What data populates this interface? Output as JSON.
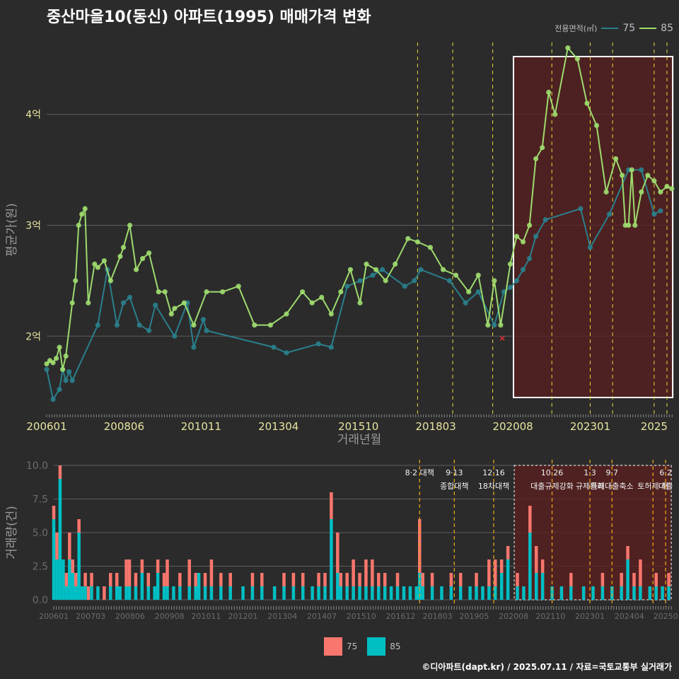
{
  "title": "중산마을10(동신) 아파트(1995) 매매가격 변화",
  "footer": "©디아파트(dapt.kr) / 2025.07.11 / 자료=국토교통부 실거래가",
  "legend_top": {
    "title": "전용면적(㎡)",
    "items": [
      "75",
      "85"
    ]
  },
  "legend_bottom": {
    "items": [
      "75",
      "85"
    ]
  },
  "colors": {
    "a75_line": "#2a7f8c",
    "a85_line": "#9edb6e",
    "bar75": "#f8766d",
    "bar85": "#00bfc4",
    "policy": "#e6d93a",
    "highlight": "#5a1f1f"
  },
  "chart_data": [
    {
      "type": "line",
      "title": "중산마을10(동신) 아파트(1995) 매매가격 변화",
      "xlabel": "거래년월",
      "ylabel": "평균가(원)",
      "x_range": [
        2006.0,
        2025.6
      ],
      "ylim": [
        1.3,
        4.7
      ],
      "y_ticks": [
        {
          "v": 2,
          "label": "2억"
        },
        {
          "v": 3,
          "label": "3억"
        },
        {
          "v": 4,
          "label": "4억"
        }
      ],
      "x_ticks": [
        {
          "v": 2006.0,
          "label": "200601"
        },
        {
          "v": 2008.42,
          "label": "200806"
        },
        {
          "v": 2010.83,
          "label": "201011"
        },
        {
          "v": 2013.25,
          "label": "201304"
        },
        {
          "v": 2015.75,
          "label": "201510"
        },
        {
          "v": 2018.17,
          "label": "201803"
        },
        {
          "v": 2020.58,
          "label": "202008"
        },
        {
          "v": 2023.0,
          "label": "202301"
        },
        {
          "v": 2025.0,
          "label": "2025"
        }
      ],
      "policy_lines": [
        2017.6,
        2018.7,
        2019.95,
        2021.8,
        2023.0,
        2023.7,
        2025.0,
        2025.4
      ],
      "highlight_range": [
        2020.6,
        2025.58
      ],
      "marker_x": {
        "x": 2020.25,
        "y": 1.98
      },
      "series": [
        {
          "name": "75",
          "x": [
            2006.0,
            2006.2,
            2006.4,
            2006.5,
            2006.6,
            2006.7,
            2006.8,
            2007.6,
            2007.9,
            2008.2,
            2008.4,
            2008.6,
            2008.9,
            2009.2,
            2009.4,
            2010.0,
            2010.4,
            2010.6,
            2010.9,
            2011.0,
            2013.1,
            2013.5,
            2014.5,
            2014.9,
            2015.4,
            2015.8,
            2016.2,
            2016.5,
            2017.2,
            2017.5,
            2017.7,
            2018.6,
            2019.1,
            2019.5,
            2020.0,
            2020.3,
            2020.5,
            2020.7,
            2020.9,
            2021.1,
            2021.3,
            2021.6,
            2022.7,
            2023.0,
            2023.6,
            2024.2,
            2024.6,
            2025.0,
            2025.2
          ],
          "y": [
            1.7,
            1.43,
            1.52,
            1.7,
            1.6,
            1.68,
            1.6,
            2.1,
            2.6,
            2.1,
            2.3,
            2.35,
            2.1,
            2.05,
            2.28,
            2.0,
            2.3,
            1.9,
            2.15,
            2.05,
            1.9,
            1.85,
            1.93,
            1.9,
            2.45,
            2.5,
            2.55,
            2.6,
            2.45,
            2.5,
            2.6,
            2.5,
            2.3,
            2.4,
            2.1,
            2.4,
            2.44,
            2.5,
            2.6,
            2.7,
            2.9,
            3.05,
            3.15,
            2.8,
            3.1,
            3.5,
            3.5,
            3.1,
            3.13
          ]
        },
        {
          "name": "85",
          "x": [
            2006.0,
            2006.1,
            2006.2,
            2006.3,
            2006.4,
            2006.5,
            2006.6,
            2006.8,
            2006.9,
            2007.0,
            2007.1,
            2007.2,
            2007.3,
            2007.5,
            2007.6,
            2007.8,
            2008.0,
            2008.3,
            2008.4,
            2008.6,
            2008.8,
            2009.0,
            2009.2,
            2009.5,
            2009.7,
            2009.9,
            2010.0,
            2010.3,
            2010.6,
            2011.0,
            2011.5,
            2012.0,
            2012.5,
            2013.0,
            2013.5,
            2014.0,
            2014.3,
            2014.6,
            2014.9,
            2015.2,
            2015.5,
            2015.8,
            2016.0,
            2016.3,
            2016.6,
            2016.9,
            2017.3,
            2017.6,
            2018.0,
            2018.4,
            2018.8,
            2019.2,
            2019.5,
            2019.8,
            2020.0,
            2020.2,
            2020.5,
            2020.7,
            2020.9,
            2021.1,
            2021.3,
            2021.5,
            2021.7,
            2021.9,
            2022.3,
            2022.6,
            2022.9,
            2023.2,
            2023.5,
            2023.8,
            2024.0,
            2024.1,
            2024.2,
            2024.3,
            2024.4,
            2024.6,
            2024.8,
            2025.0,
            2025.2,
            2025.4,
            2025.55
          ],
          "y": [
            1.75,
            1.78,
            1.76,
            1.8,
            1.9,
            1.7,
            1.82,
            2.3,
            2.5,
            3.0,
            3.1,
            3.15,
            2.3,
            2.65,
            2.62,
            2.68,
            2.5,
            2.72,
            2.8,
            3.0,
            2.6,
            2.7,
            2.75,
            2.4,
            2.4,
            2.2,
            2.25,
            2.3,
            2.1,
            2.4,
            2.4,
            2.45,
            2.1,
            2.1,
            2.2,
            2.4,
            2.3,
            2.35,
            2.2,
            2.4,
            2.6,
            2.3,
            2.65,
            2.6,
            2.5,
            2.65,
            2.88,
            2.85,
            2.8,
            2.6,
            2.55,
            2.4,
            2.55,
            2.1,
            2.5,
            2.1,
            2.65,
            2.9,
            2.85,
            3.0,
            3.6,
            3.7,
            4.2,
            4.0,
            4.6,
            4.5,
            4.1,
            3.9,
            3.3,
            3.6,
            3.45,
            3.0,
            3.0,
            3.5,
            3.0,
            3.3,
            3.45,
            3.4,
            3.3,
            3.35,
            3.33
          ]
        }
      ]
    },
    {
      "type": "bar",
      "title": "",
      "xlabel": "",
      "ylabel": "거래량(건)",
      "x_range": [
        2006.0,
        2025.6
      ],
      "ylim": [
        0,
        10
      ],
      "y_ticks": [
        {
          "v": 0,
          "label": "0.0"
        },
        {
          "v": 2.5,
          "label": "2.5"
        },
        {
          "v": 5,
          "label": "5.0"
        },
        {
          "v": 7.5,
          "label": "7.5"
        },
        {
          "v": 10,
          "label": "10.0"
        }
      ],
      "x_ticks": [
        {
          "v": 2006.0,
          "label": "200601"
        },
        {
          "v": 2007.17,
          "label": "200703"
        },
        {
          "v": 2008.42,
          "label": "200806"
        },
        {
          "v": 2009.67,
          "label": "200908"
        },
        {
          "v": 2010.83,
          "label": "201011"
        },
        {
          "v": 2012.0,
          "label": "201201"
        },
        {
          "v": 2013.25,
          "label": "201304"
        },
        {
          "v": 2014.5,
          "label": "201407"
        },
        {
          "v": 2015.75,
          "label": "201510"
        },
        {
          "v": 2017.0,
          "label": "201612"
        },
        {
          "v": 2018.17,
          "label": "201803"
        },
        {
          "v": 2019.33,
          "label": "201905"
        },
        {
          "v": 2020.58,
          "label": "202008"
        },
        {
          "v": 2021.75,
          "label": "202110"
        },
        {
          "v": 2023.0,
          "label": "202301"
        },
        {
          "v": 2024.25,
          "label": "202404"
        },
        {
          "v": 2025.4,
          "label": "20250"
        }
      ],
      "highlight_range": [
        2020.6,
        2025.58
      ],
      "policy_lines": [
        {
          "x": 2017.6,
          "label1": "8·2 대책",
          "label2": ""
        },
        {
          "x": 2018.7,
          "label1": "9·13",
          "label2": "종합대책"
        },
        {
          "x": 2019.95,
          "label1": "12·16",
          "label2": "18차대책"
        },
        {
          "x": 2021.8,
          "label1": "10·26",
          "label2": "대출규제강화"
        },
        {
          "x": 2023.0,
          "label1": "1·3",
          "label2": "규제완화"
        },
        {
          "x": 2023.7,
          "label1": "9·7",
          "label2": "특례대출축소"
        },
        {
          "x": 2025.0,
          "label1": "",
          "label2": "토허제 해"
        },
        {
          "x": 2025.4,
          "label1": "6·2",
          "label2": "대출"
        }
      ],
      "x": [
        2006.0,
        2006.1,
        2006.2,
        2006.3,
        2006.4,
        2006.5,
        2006.6,
        2006.7,
        2006.8,
        2006.9,
        2007.0,
        2007.1,
        2007.2,
        2007.4,
        2007.6,
        2007.8,
        2008.0,
        2008.1,
        2008.3,
        2008.4,
        2008.6,
        2008.8,
        2009.0,
        2009.2,
        2009.3,
        2009.5,
        2009.6,
        2009.8,
        2010.0,
        2010.3,
        2010.5,
        2010.6,
        2010.8,
        2011.0,
        2011.3,
        2011.6,
        2012.0,
        2012.3,
        2012.6,
        2013.0,
        2013.3,
        2013.6,
        2013.9,
        2014.2,
        2014.4,
        2014.6,
        2014.8,
        2015.0,
        2015.1,
        2015.3,
        2015.5,
        2015.7,
        2015.9,
        2016.1,
        2016.3,
        2016.5,
        2016.7,
        2016.9,
        2017.1,
        2017.3,
        2017.5,
        2017.6,
        2017.7,
        2018.0,
        2018.3,
        2018.6,
        2018.9,
        2019.2,
        2019.4,
        2019.6,
        2019.8,
        2020.0,
        2020.2,
        2020.4,
        2020.7,
        2020.9,
        2021.1,
        2021.3,
        2021.5,
        2021.8,
        2022.1,
        2022.4,
        2022.8,
        2023.1,
        2023.4,
        2023.7,
        2024.0,
        2024.2,
        2024.4,
        2024.6,
        2024.9,
        2025.1,
        2025.3,
        2025.5
      ],
      "series": [
        {
          "name": "75",
          "values": [
            1,
            2,
            1,
            0,
            1,
            2,
            1,
            1,
            1,
            0,
            1,
            1,
            1,
            0,
            1,
            1,
            1,
            0,
            2,
            2,
            1,
            1,
            1,
            0,
            1,
            1,
            2,
            0,
            1,
            2,
            1,
            0,
            1,
            2,
            1,
            1,
            0,
            1,
            1,
            0,
            1,
            1,
            1,
            0,
            1,
            1,
            2,
            3,
            1,
            1,
            2,
            1,
            2,
            2,
            1,
            1,
            0,
            1,
            0,
            0,
            0,
            4,
            1,
            1,
            0,
            1,
            1,
            0,
            1,
            0,
            2,
            2,
            1,
            1,
            1,
            0,
            2,
            2,
            1,
            0,
            0,
            1,
            0,
            0,
            1,
            0,
            1,
            1,
            1,
            2,
            0,
            1,
            0,
            1
          ]
        },
        {
          "name": "85",
          "values": [
            6,
            3,
            9,
            3,
            1,
            3,
            2,
            1,
            5,
            1,
            1,
            0,
            1,
            1,
            0,
            1,
            1,
            1,
            1,
            1,
            1,
            2,
            1,
            1,
            2,
            1,
            1,
            1,
            1,
            1,
            1,
            2,
            1,
            1,
            1,
            1,
            1,
            1,
            1,
            1,
            1,
            1,
            1,
            1,
            1,
            1,
            6,
            2,
            1,
            1,
            1,
            1,
            1,
            1,
            1,
            1,
            1,
            1,
            1,
            1,
            1,
            2,
            1,
            1,
            1,
            1,
            1,
            1,
            1,
            1,
            1,
            1,
            2,
            3,
            1,
            1,
            5,
            2,
            2,
            1,
            1,
            1,
            1,
            1,
            1,
            1,
            1,
            3,
            1,
            1,
            1,
            1,
            1,
            1
          ]
        }
      ]
    }
  ]
}
